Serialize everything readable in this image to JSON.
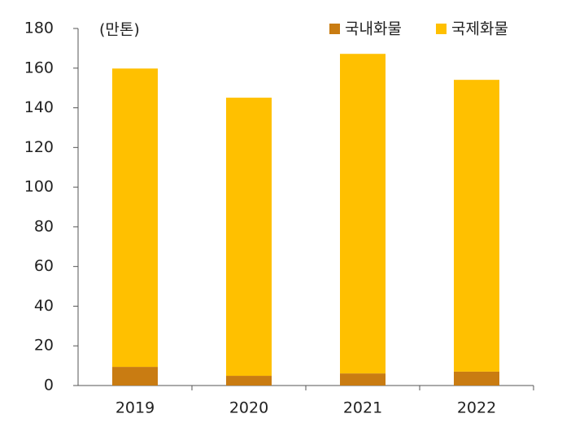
{
  "chart_data": {
    "type": "stacked_bar",
    "unit_label": "(만톤)",
    "categories": [
      "2019",
      "2020",
      "2021",
      "2022"
    ],
    "series": [
      {
        "name": "국내화물",
        "color": "#c97c12",
        "values": [
          9.4,
          4.9,
          6.1,
          7.0
        ]
      },
      {
        "name": "국제화물",
        "color": "#ffc000",
        "values": [
          150.4,
          140.2,
          161.1,
          147.1
        ]
      }
    ],
    "ylim": [
      0,
      180
    ],
    "yticks": [
      0,
      20,
      40,
      60,
      80,
      100,
      120,
      140,
      160,
      180
    ]
  }
}
